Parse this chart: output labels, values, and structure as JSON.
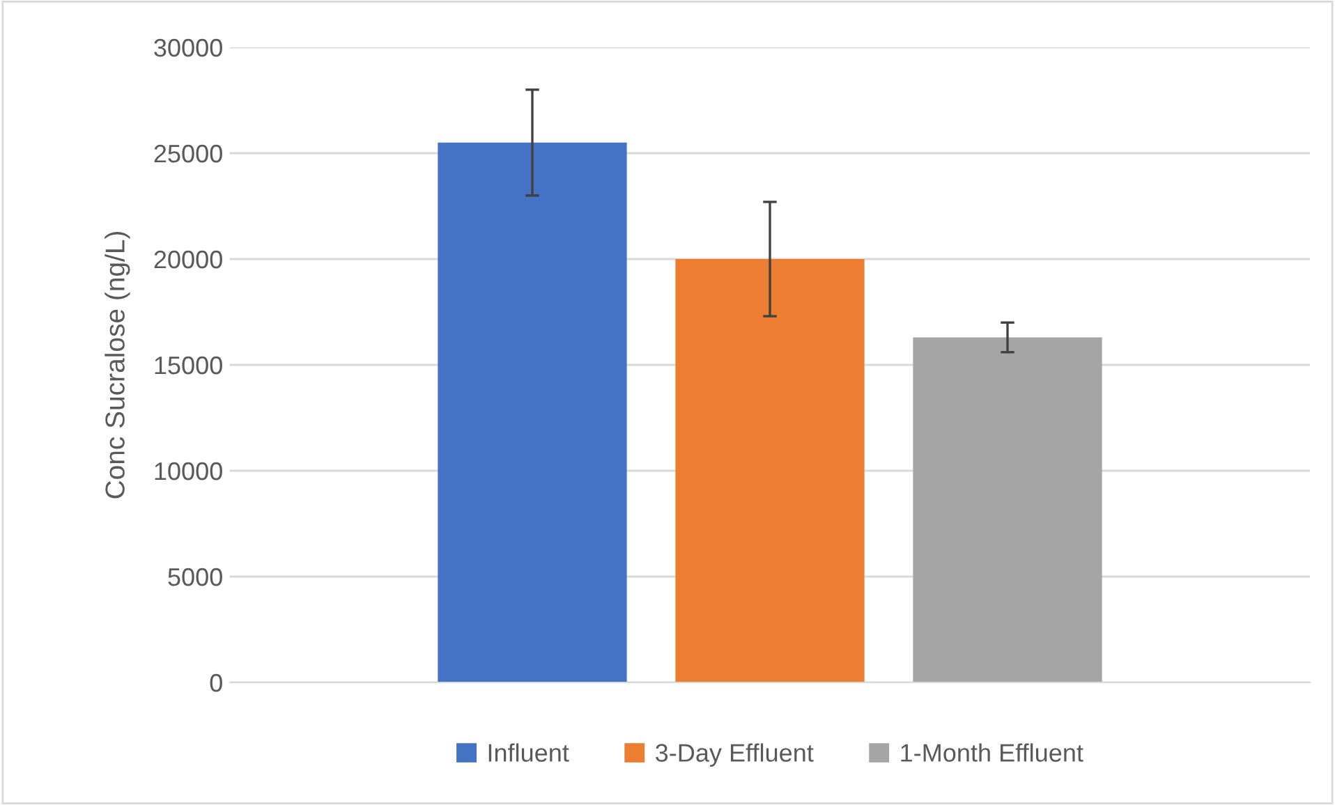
{
  "chart_data": {
    "type": "bar",
    "ylabel": "Conc Sucralose (ng/L)",
    "categories": [
      null
    ],
    "series": [
      {
        "name": "Influent",
        "color": "#4472c4",
        "values": [
          25500
        ],
        "errors": [
          2500
        ]
      },
      {
        "name": "3-Day Effluent",
        "color": "#ed7d31",
        "values": [
          20000
        ],
        "errors": [
          2700
        ]
      },
      {
        "name": "1-Month Effluent",
        "color": "#a5a5a5",
        "values": [
          16300
        ],
        "errors": [
          700
        ]
      }
    ],
    "ylim": [
      0,
      30000
    ],
    "yticks": [
      0,
      5000,
      10000,
      15000,
      20000,
      25000,
      30000
    ],
    "grid": "y",
    "legend": "bottom"
  }
}
